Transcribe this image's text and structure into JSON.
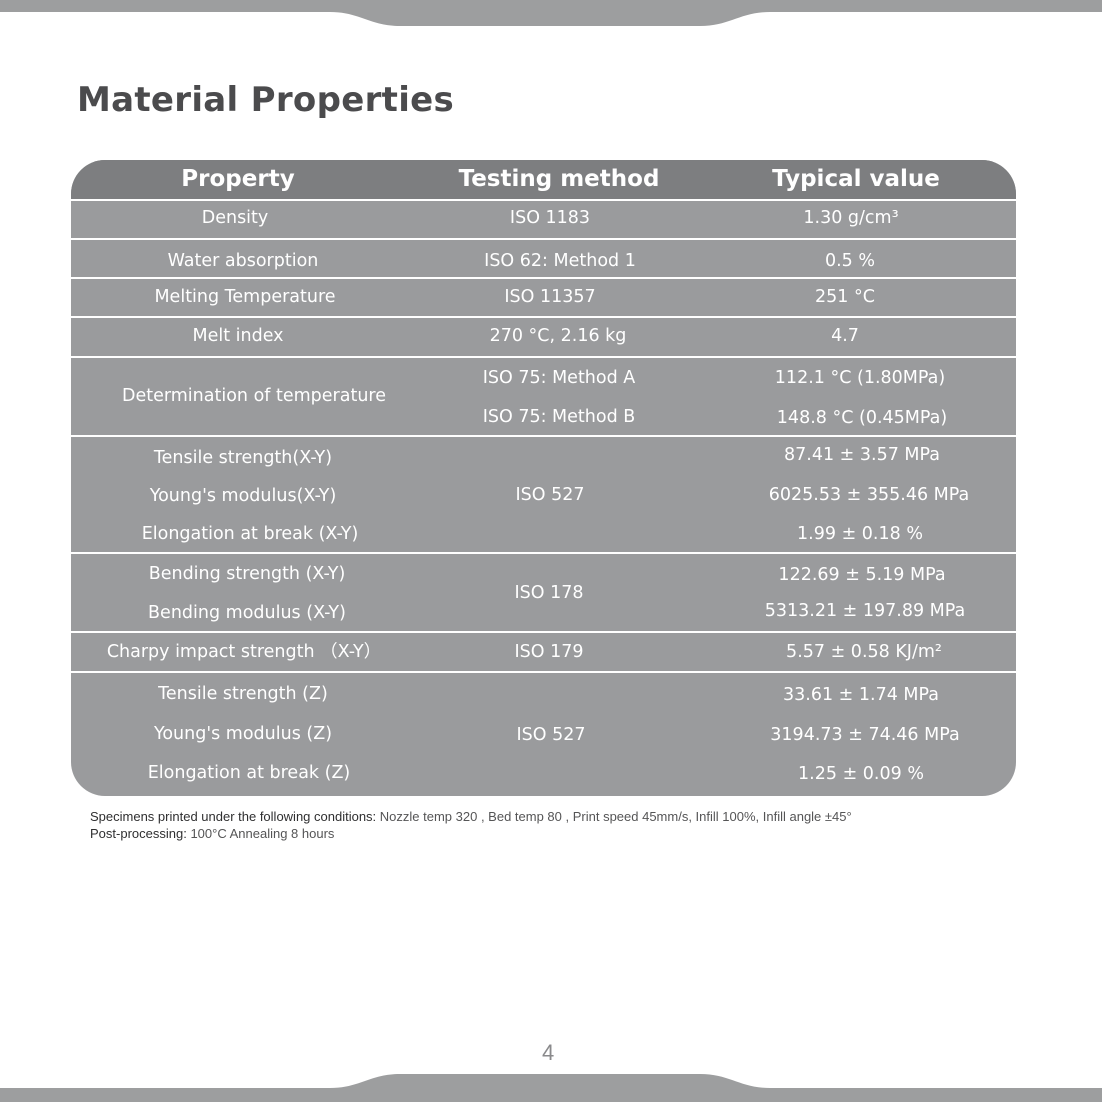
{
  "page": {
    "title": "Material Properties",
    "page_number": "4"
  },
  "table": {
    "headers": [
      "Property",
      "Testing method",
      "Typical value"
    ],
    "rows": [
      {
        "property": [
          "Density"
        ],
        "method": [
          "ISO 1183"
        ],
        "value": [
          "1.30 g/cm³"
        ]
      },
      {
        "property": [
          "Water absorption"
        ],
        "method": [
          "ISO 62: Method 1"
        ],
        "value": [
          "0.5 %"
        ]
      },
      {
        "property": [
          "Melting Temperature"
        ],
        "method": [
          "ISO 11357"
        ],
        "value": [
          "251 °C"
        ]
      },
      {
        "property": [
          "Melt index"
        ],
        "method": [
          "270 °C, 2.16 kg"
        ],
        "value": [
          "4.7"
        ]
      },
      {
        "property": [
          "Determination of temperature"
        ],
        "method": [
          "ISO 75: Method A",
          "ISO 75: Method B"
        ],
        "value": [
          "112.1 °C (1.80MPa)",
          "148.8 °C (0.45MPa)"
        ]
      },
      {
        "property": [
          "Tensile strength(X-Y)",
          "Young's modulus(X-Y)",
          "Elongation at break (X-Y)"
        ],
        "method": [
          "ISO 527"
        ],
        "value": [
          "87.41 ± 3.57 MPa",
          "6025.53 ± 355.46 MPa",
          "1.99 ± 0.18 %"
        ]
      },
      {
        "property": [
          "Bending strength (X-Y)",
          "Bending modulus (X-Y)"
        ],
        "method": [
          "ISO 178"
        ],
        "value": [
          "122.69 ± 5.19 MPa",
          "5313.21 ± 197.89 MPa"
        ]
      },
      {
        "property": [
          "Charpy impact strength （X-Y）"
        ],
        "method": [
          "ISO 179"
        ],
        "value": [
          "5.57 ± 0.58 KJ/m²"
        ]
      },
      {
        "property": [
          "Tensile strength (Z)",
          "Young's modulus (Z)",
          "Elongation at break (Z)"
        ],
        "method": [
          "ISO 527"
        ],
        "value": [
          "33.61 ± 1.74 MPa",
          "3194.73 ± 74.46 MPa",
          "1.25 ± 0.09 %"
        ]
      }
    ]
  },
  "footnotes": {
    "conditions_label": "Specimens printed under the following conditions:",
    "conditions_text": " Nozzle temp 320 , Bed temp 80 , Print speed 45mm/s, Infill 100%, Infill angle ±45°",
    "post_label": "Post-processing:",
    "post_text": " 100°C Annealing 8 hours"
  },
  "colors": {
    "band": "#9d9e9f",
    "header": "#7d7e80",
    "body": "#9a9b9d",
    "title": "#4b4b4d"
  }
}
